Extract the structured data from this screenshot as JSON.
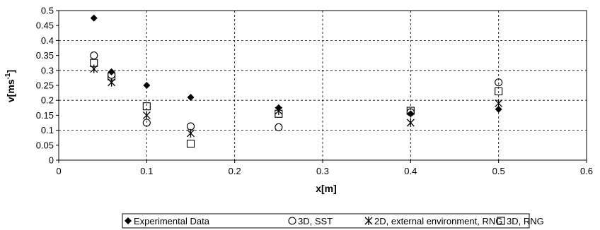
{
  "chart_data": {
    "type": "scatter",
    "xlabel": "x[m]",
    "ylabel": "v[ms-1]",
    "ylabel_main": "v[ms",
    "ylabel_sup": "-1",
    "ylabel_close": "]",
    "xlim": [
      0,
      0.6
    ],
    "ylim": [
      0,
      0.5
    ],
    "x_ticks": [
      0,
      0.1,
      0.2,
      0.3,
      0.4,
      0.5,
      0.6
    ],
    "x_tick_labels": [
      "0",
      "0.1",
      "0.2",
      "0.3",
      "0.4",
      "0.5",
      "0.6"
    ],
    "y_ticks": [
      0,
      0.05,
      0.1,
      0.15,
      0.2,
      0.25,
      0.3,
      0.35,
      0.4,
      0.45,
      0.5
    ],
    "y_tick_labels": [
      "0",
      "0.05",
      "0.1",
      "0.15",
      "0.2",
      "0.25",
      "0.3",
      "0.35",
      "0.4",
      "0.45",
      "0.5"
    ],
    "grid": "vertical dashed at x ticks; horizontal dashed at y=0.1 intervals",
    "legend_position": "bottom",
    "series": [
      {
        "name": "Experimental Data",
        "marker": "filled-diamond",
        "x": [
          0.04,
          0.06,
          0.1,
          0.15,
          0.25,
          0.4,
          0.5
        ],
        "y": [
          0.475,
          0.295,
          0.25,
          0.21,
          0.175,
          0.155,
          0.17
        ]
      },
      {
        "name": "3D, SST",
        "marker": "open-circle",
        "x": [
          0.04,
          0.06,
          0.1,
          0.15,
          0.25,
          0.4,
          0.5
        ],
        "y": [
          0.35,
          0.285,
          0.125,
          0.113,
          0.11,
          0.16,
          0.26
        ]
      },
      {
        "name": "2D, external environment, RNG",
        "marker": "asterisk",
        "x": [
          0.04,
          0.06,
          0.1,
          0.15,
          0.25,
          0.4,
          0.5
        ],
        "y": [
          0.305,
          0.26,
          0.15,
          0.09,
          0.165,
          0.125,
          0.19
        ]
      },
      {
        "name": "3D, RNG",
        "marker": "open-square",
        "x": [
          0.04,
          0.06,
          0.1,
          0.15,
          0.25,
          0.4,
          0.5
        ],
        "y": [
          0.325,
          0.28,
          0.18,
          0.055,
          0.155,
          0.165,
          0.23
        ]
      }
    ]
  }
}
